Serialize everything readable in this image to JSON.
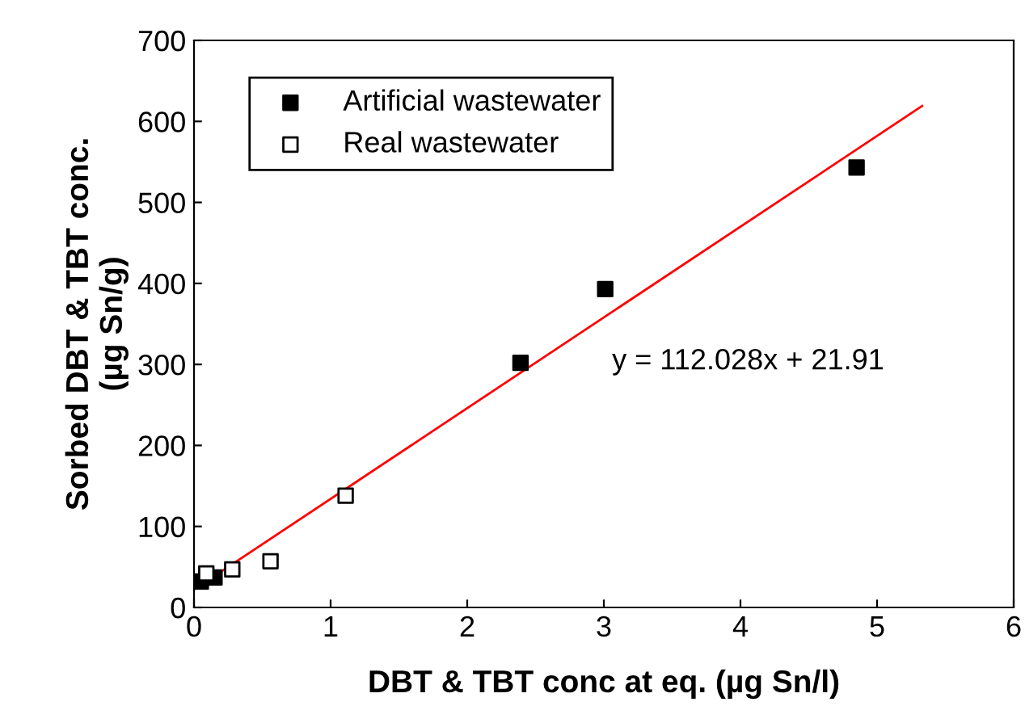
{
  "chart_data": {
    "type": "scatter",
    "xlabel": "DBT & TBT conc at eq. (µg Sn/l)",
    "ylabel": "Sorbed DBT & TBT conc.\n(µg Sn/g)",
    "series": [
      {
        "name": "Artificial wastewater",
        "color": "#000000",
        "marker": "square",
        "x": [
          0.05,
          0.15,
          2.39,
          3.01,
          4.85
        ],
        "values": [
          32,
          37,
          302,
          393,
          543
        ]
      },
      {
        "name": "Real wastewater",
        "color": "#ffffff",
        "marker": "square",
        "x": [
          0.09,
          0.28,
          0.56,
          1.11
        ],
        "values": [
          42,
          47,
          57,
          138
        ]
      },
      {
        "type": "line",
        "color": "#ff0000",
        "x": [
          0,
          5.33
        ],
        "values": [
          22,
          619
        ]
      }
    ],
    "annotations": [
      "y = 112.028x + 21.91"
    ],
    "xlim": [
      0,
      6
    ],
    "xticks": [
      0,
      1,
      2,
      3,
      4,
      5,
      6
    ],
    "ylim": [
      0,
      700
    ],
    "yticks": [
      0,
      100,
      200,
      300,
      400,
      500,
      600,
      700
    ],
    "grid": false,
    "legend": "top left"
  }
}
